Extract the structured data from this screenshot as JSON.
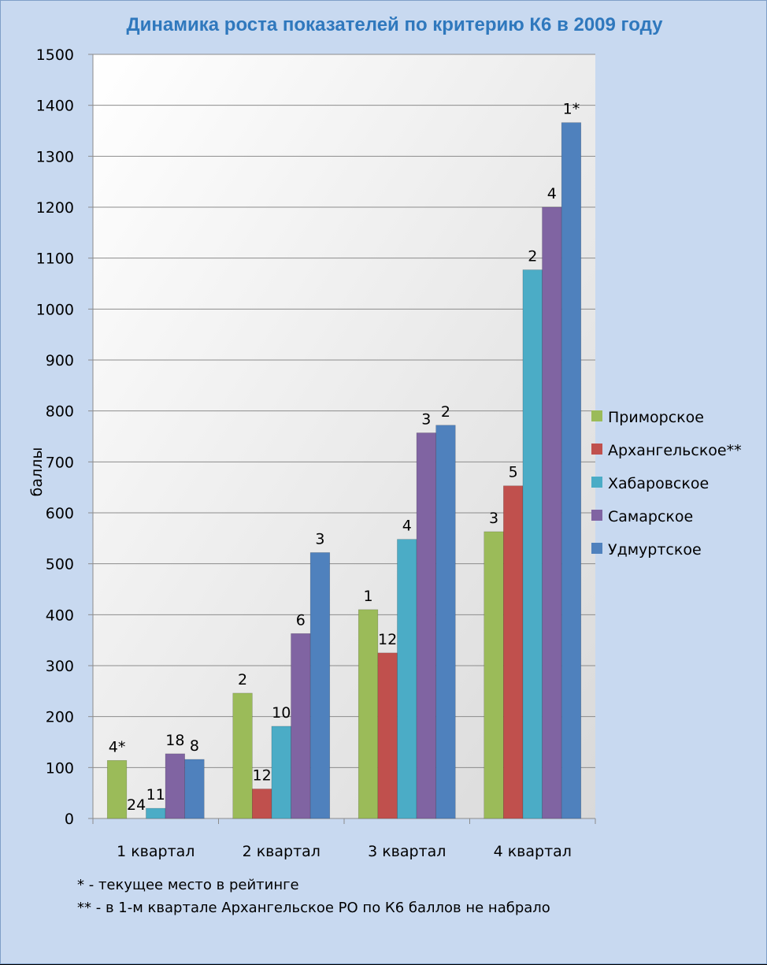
{
  "chart_data": {
    "type": "bar",
    "title": "Динамика роста показателей по критерию К6 в 2009 году",
    "ylabel": "баллы",
    "xlabel": "",
    "ylim": [
      0,
      1500
    ],
    "yticks": [
      0,
      100,
      200,
      300,
      400,
      500,
      600,
      700,
      800,
      900,
      1000,
      1100,
      1200,
      1300,
      1400,
      1500
    ],
    "grid": true,
    "legend_position": "right",
    "categories": [
      "1 квартал",
      "2 квартал",
      "3 квартал",
      "4 квартал"
    ],
    "series": [
      {
        "name": "Приморское",
        "color": "#9bbb59",
        "values": [
          114,
          246,
          410,
          563
        ],
        "labels": [
          "4*",
          "2",
          "1",
          "3"
        ]
      },
      {
        "name": "Архангельское**",
        "color": "#c0504d",
        "values": [
          0,
          58,
          325,
          653
        ],
        "labels": [
          "24",
          "12",
          "12",
          "5"
        ]
      },
      {
        "name": "Хабаровское",
        "color": "#4bacc6",
        "values": [
          20,
          181,
          548,
          1077
        ],
        "labels": [
          "11",
          "10",
          "4",
          "2"
        ]
      },
      {
        "name": "Самарское",
        "color": "#8064a2",
        "values": [
          127,
          363,
          757,
          1200
        ],
        "labels": [
          "18",
          "6",
          "3",
          "4"
        ]
      },
      {
        "name": "Удмуртское",
        "color": "#4f81bd",
        "values": [
          116,
          522,
          772,
          1366
        ],
        "labels": [
          "8",
          "3",
          "2",
          "1*"
        ]
      }
    ],
    "notes": [
      "* - текущее место в рейтинге",
      "** - в 1-м квартале Архангельское РО по К6 баллов не набрало"
    ]
  }
}
